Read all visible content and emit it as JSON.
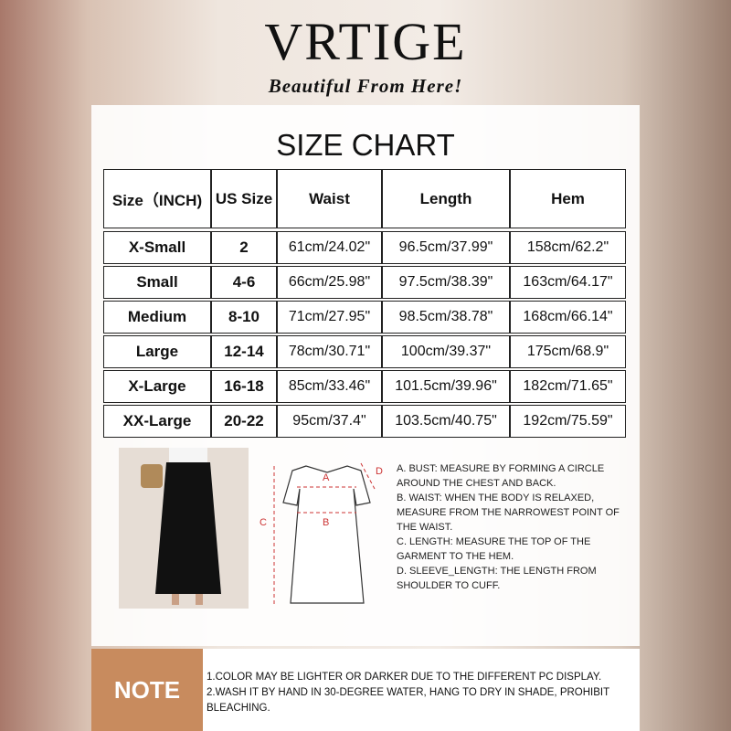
{
  "header": {
    "brand": "VRTIGE",
    "tagline": "Beautiful From Here!"
  },
  "title": "SIZE CHART",
  "table": {
    "columns": [
      "Size（INCH)",
      "US Size",
      "Waist",
      "Length",
      "Hem"
    ],
    "rows": [
      [
        "X-Small",
        "2",
        "61cm/24.02\"",
        "96.5cm/37.99\"",
        "158cm/62.2\""
      ],
      [
        "Small",
        "4-6",
        "66cm/25.98\"",
        "97.5cm/38.39\"",
        "163cm/64.17\""
      ],
      [
        "Medium",
        "8-10",
        "71cm/27.95\"",
        "98.5cm/38.78\"",
        "168cm/66.14\""
      ],
      [
        "Large",
        "12-14",
        "78cm/30.71\"",
        "100cm/39.37\"",
        "175cm/68.9\""
      ],
      [
        "X-Large",
        "16-18",
        "85cm/33.46\"",
        "101.5cm/39.96\"",
        "182cm/71.65\""
      ],
      [
        "XX-Large",
        "20-22",
        "95cm/37.4\"",
        "103.5cm/40.75\"",
        "192cm/75.59\""
      ]
    ]
  },
  "diagram": {
    "labels": [
      "A",
      "B",
      "C",
      "D"
    ]
  },
  "instructions": [
    "A. BUST: MEASURE BY FORMING A CIRCLE AROUND THE CHEST AND BACK.",
    "B. WAIST: WHEN THE BODY IS RELAXED, MEASURE FROM THE NARROWEST POINT OF THE WAIST.",
    "C. LENGTH: MEASURE THE TOP OF THE GARMENT TO THE HEM.",
    "D. SLEEVE_LENGTH: THE LENGTH FROM SHOULDER TO CUFF."
  ],
  "note": {
    "label": "NOTE",
    "lines": [
      "1.COLOR MAY BE LIGHTER OR DARKER DUE TO THE DIFFERENT PC DISPLAY.",
      "2.WASH IT BY HAND IN 30-DEGREE WATER, HANG TO DRY IN SHADE, PROHIBIT BLEACHING."
    ]
  }
}
